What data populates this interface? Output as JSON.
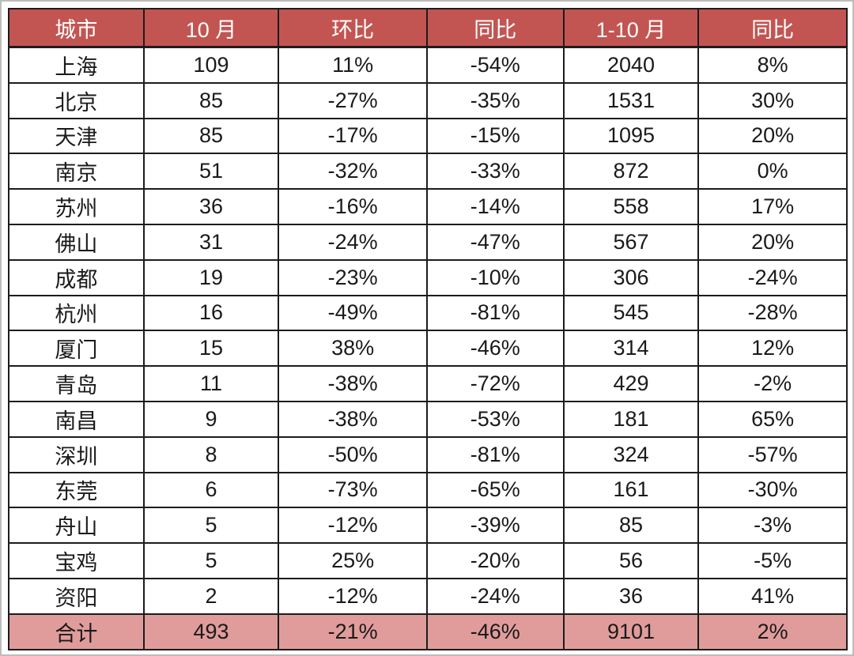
{
  "chart_data": {
    "type": "table",
    "columns": [
      "城市",
      "10 月",
      "环比",
      "同比",
      "1-10 月",
      "同比"
    ],
    "rows": [
      [
        "上海",
        "109",
        "11%",
        "-54%",
        "2040",
        "8%"
      ],
      [
        "北京",
        "85",
        "-27%",
        "-35%",
        "1531",
        "30%"
      ],
      [
        "天津",
        "85",
        "-17%",
        "-15%",
        "1095",
        "20%"
      ],
      [
        "南京",
        "51",
        "-32%",
        "-33%",
        "872",
        "0%"
      ],
      [
        "苏州",
        "36",
        "-16%",
        "-14%",
        "558",
        "17%"
      ],
      [
        "佛山",
        "31",
        "-24%",
        "-47%",
        "567",
        "20%"
      ],
      [
        "成都",
        "19",
        "-23%",
        "-10%",
        "306",
        "-24%"
      ],
      [
        "杭州",
        "16",
        "-49%",
        "-81%",
        "545",
        "-28%"
      ],
      [
        "厦门",
        "15",
        "38%",
        "-46%",
        "314",
        "12%"
      ],
      [
        "青岛",
        "11",
        "-38%",
        "-72%",
        "429",
        "-2%"
      ],
      [
        "南昌",
        "9",
        "-38%",
        "-53%",
        "181",
        "65%"
      ],
      [
        "深圳",
        "8",
        "-50%",
        "-81%",
        "324",
        "-57%"
      ],
      [
        "东莞",
        "6",
        "-73%",
        "-65%",
        "161",
        "-30%"
      ],
      [
        "舟山",
        "5",
        "-12%",
        "-39%",
        "85",
        "-3%"
      ],
      [
        "宝鸡",
        "5",
        "25%",
        "-20%",
        "56",
        "-5%"
      ],
      [
        "资阳",
        "2",
        "-12%",
        "-24%",
        "36",
        "41%"
      ]
    ],
    "total_row": [
      "合计",
      "493",
      "-21%",
      "-46%",
      "9101",
      "2%"
    ],
    "layout": {
      "column_width_percents": [
        16.1,
        16.1,
        17.7,
        16.3,
        16.1,
        17.7
      ]
    },
    "colors": {
      "header_bg": "#c25552",
      "header_text": "#ffffff",
      "total_bg": "#e09c9b",
      "body_bg": "#ffffff",
      "body_text": "#1a1a1a",
      "border": "#1c1c1c",
      "page_frame": "#bdbdbd"
    }
  }
}
